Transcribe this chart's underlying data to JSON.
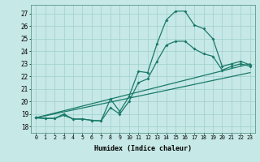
{
  "title": "",
  "xlabel": "Humidex (Indice chaleur)",
  "background_color": "#c6e8e6",
  "grid_color": "#9fcfcc",
  "line_color": "#1a7a6a",
  "xlim": [
    -0.5,
    23.5
  ],
  "ylim": [
    17.5,
    27.7
  ],
  "xticks": [
    0,
    1,
    2,
    3,
    4,
    5,
    6,
    7,
    8,
    9,
    10,
    11,
    12,
    13,
    14,
    15,
    16,
    17,
    18,
    19,
    20,
    21,
    22,
    23
  ],
  "yticks": [
    18,
    19,
    20,
    21,
    22,
    23,
    24,
    25,
    26,
    27
  ],
  "line1_x": [
    0,
    1,
    2,
    3,
    4,
    5,
    6,
    7,
    8,
    9,
    10,
    11,
    12,
    13,
    14,
    15,
    16,
    17,
    18,
    19,
    20,
    21,
    22,
    23
  ],
  "line1_y": [
    18.7,
    18.65,
    18.65,
    19.0,
    18.6,
    18.6,
    18.5,
    18.45,
    20.2,
    19.2,
    20.4,
    22.4,
    22.3,
    24.6,
    26.5,
    27.2,
    27.2,
    26.1,
    25.8,
    25.0,
    22.8,
    23.0,
    23.2,
    22.9
  ],
  "line2_x": [
    0,
    1,
    2,
    3,
    4,
    5,
    6,
    7,
    8,
    9,
    10,
    11,
    12,
    13,
    14,
    15,
    16,
    17,
    18,
    19,
    20,
    21,
    22,
    23
  ],
  "line2_y": [
    18.7,
    18.65,
    18.65,
    18.9,
    18.6,
    18.6,
    18.5,
    18.45,
    19.5,
    19.0,
    20.0,
    21.5,
    21.8,
    23.2,
    24.5,
    24.8,
    24.8,
    24.2,
    23.8,
    23.6,
    22.5,
    22.8,
    23.0,
    22.8
  ],
  "line3_x": [
    0,
    23
  ],
  "line3_y": [
    18.7,
    23.0
  ],
  "line4_x": [
    0,
    23
  ],
  "line4_y": [
    18.7,
    22.3
  ]
}
